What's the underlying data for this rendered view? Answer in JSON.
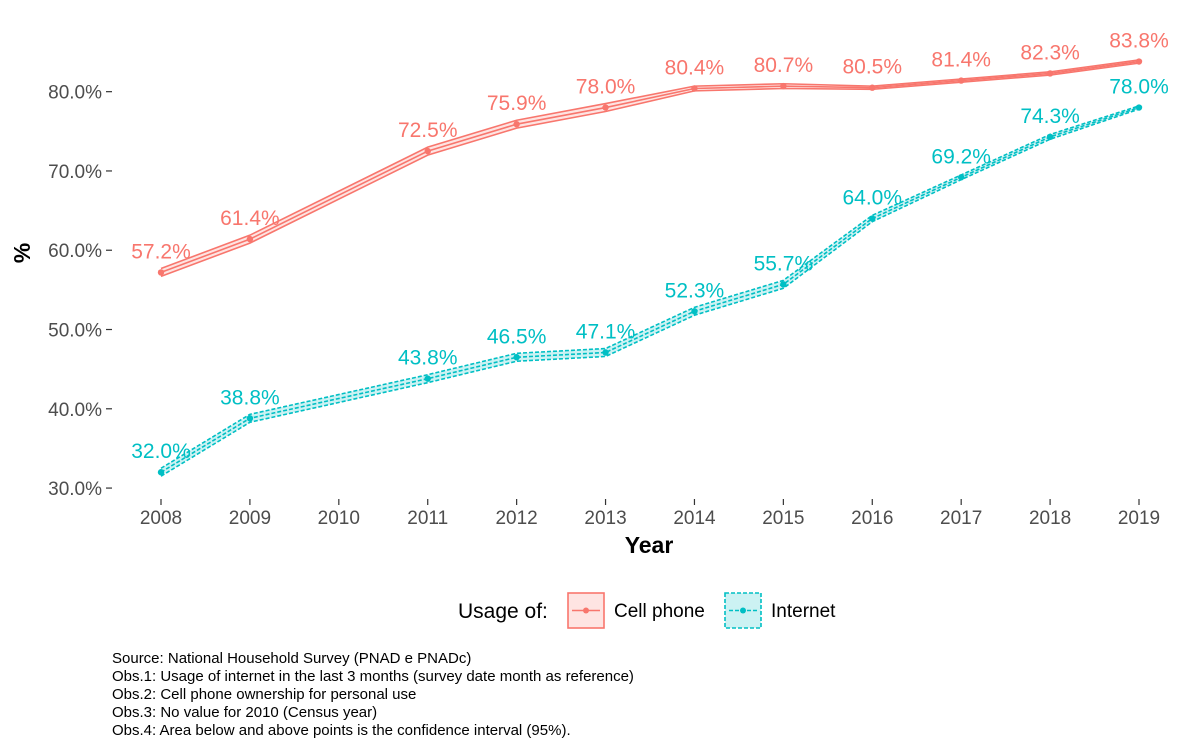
{
  "chart_data": {
    "type": "line",
    "title": "",
    "xlabel": "Year",
    "ylabel": "%",
    "x": [
      2008,
      2009,
      2011,
      2012,
      2013,
      2014,
      2015,
      2016,
      2017,
      2018,
      2019
    ],
    "x_ticks": [
      "2008",
      "2009",
      "2010",
      "2011",
      "2012",
      "2013",
      "2014",
      "2015",
      "2016",
      "2017",
      "2018",
      "2019"
    ],
    "xlim": [
      2008,
      2019
    ],
    "y_ticks": [
      "30.0%",
      "40.0%",
      "50.0%",
      "60.0%",
      "70.0%",
      "80.0%"
    ],
    "ylim": [
      29,
      84.5
    ],
    "grid": false,
    "series": [
      {
        "name": "Cell phone",
        "color": "#F8766D",
        "values": [
          57.2,
          61.4,
          72.5,
          75.9,
          78.0,
          80.4,
          80.7,
          80.5,
          81.4,
          82.3,
          83.8
        ],
        "labels": [
          "57.2%",
          "61.4%",
          "72.5%",
          "75.9%",
          "78.0%",
          "80.4%",
          "80.7%",
          "80.5%",
          "81.4%",
          "82.3%",
          "83.8%"
        ],
        "ci_lower": [
          56.7,
          60.9,
          72.0,
          75.4,
          77.5,
          80.1,
          80.4,
          80.3,
          81.2,
          82.1,
          83.6
        ],
        "ci_upper": [
          57.7,
          61.9,
          73.0,
          76.4,
          78.5,
          80.7,
          81.0,
          80.7,
          81.6,
          82.5,
          84.0
        ],
        "line_style": "solid"
      },
      {
        "name": "Internet",
        "color": "#00BFC4",
        "values": [
          32.0,
          38.8,
          43.8,
          46.5,
          47.1,
          52.3,
          55.7,
          64.0,
          69.2,
          74.3,
          78.0
        ],
        "labels": [
          "32.0%",
          "38.8%",
          "43.8%",
          "46.5%",
          "47.1%",
          "52.3%",
          "55.7%",
          "64.0%",
          "69.2%",
          "74.3%",
          "78.0%"
        ],
        "ci_lower": [
          31.5,
          38.3,
          43.3,
          46.0,
          46.6,
          51.8,
          55.2,
          63.6,
          68.9,
          74.0,
          77.8
        ],
        "ci_upper": [
          32.5,
          39.3,
          44.3,
          47.0,
          47.6,
          52.8,
          56.2,
          64.4,
          69.5,
          74.6,
          78.2
        ],
        "line_style": "dashed"
      }
    ],
    "legend": {
      "title": "Usage of:",
      "placement": "bottom",
      "entries": [
        "Cell phone",
        "Internet"
      ]
    },
    "notes": [
      "Source: National Household Survey (PNAD e PNADc)",
      "Obs.1: Usage of internet in the last 3 months (survey date month as reference)",
      "Obs.2: Cell phone ownership for personal use",
      "Obs.3: No value for 2010 (Census year)",
      "Obs.4: Area below and above points is the confidence interval (95%)."
    ]
  }
}
